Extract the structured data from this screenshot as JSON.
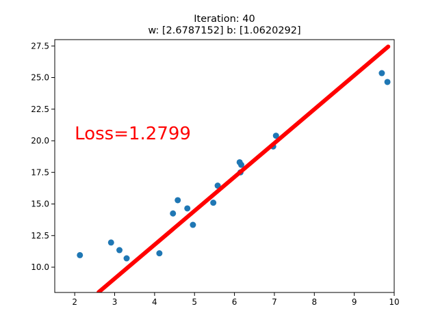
{
  "chart_data": {
    "type": "scatter",
    "title_line1": "Iteration: 40",
    "title_line2": "w: [2.6787152] b: [1.0620292]",
    "xlabel": "",
    "ylabel": "",
    "xlim": [
      1.5,
      10.0
    ],
    "ylim": [
      8.0,
      28.0
    ],
    "xticks": [
      2,
      3,
      4,
      5,
      6,
      7,
      8,
      9,
      10
    ],
    "xtick_labels": [
      "2",
      "3",
      "4",
      "5",
      "6",
      "7",
      "8",
      "9",
      "10"
    ],
    "yticks": [
      10.0,
      12.5,
      15.0,
      17.5,
      20.0,
      22.5,
      25.0,
      27.5
    ],
    "ytick_labels": [
      "10.0",
      "12.5",
      "15.0",
      "17.5",
      "20.0",
      "22.5",
      "25.0",
      "27.5"
    ],
    "grid": false,
    "point_color": "#1f77b4",
    "line_color": "#ff0000",
    "annotation": {
      "text": "Loss=1.2799",
      "x": 2.0,
      "y": 20.1,
      "color": "#ff0000"
    },
    "fit_line": {
      "w": 2.6787152,
      "b": 1.0620292,
      "x_start": 2.6,
      "x_end": 9.85
    },
    "points": [
      {
        "x": 2.13,
        "y": 10.95
      },
      {
        "x": 2.91,
        "y": 11.95
      },
      {
        "x": 3.12,
        "y": 11.35
      },
      {
        "x": 3.3,
        "y": 10.7
      },
      {
        "x": 4.12,
        "y": 11.1
      },
      {
        "x": 4.46,
        "y": 14.25
      },
      {
        "x": 4.58,
        "y": 15.3
      },
      {
        "x": 4.82,
        "y": 14.65
      },
      {
        "x": 4.96,
        "y": 13.35
      },
      {
        "x": 5.47,
        "y": 15.1
      },
      {
        "x": 5.58,
        "y": 16.45
      },
      {
        "x": 6.13,
        "y": 18.3
      },
      {
        "x": 6.17,
        "y": 18.1
      },
      {
        "x": 6.15,
        "y": 17.5
      },
      {
        "x": 6.97,
        "y": 19.55
      },
      {
        "x": 7.04,
        "y": 20.4
      },
      {
        "x": 9.69,
        "y": 25.35
      },
      {
        "x": 9.83,
        "y": 24.65
      }
    ]
  }
}
